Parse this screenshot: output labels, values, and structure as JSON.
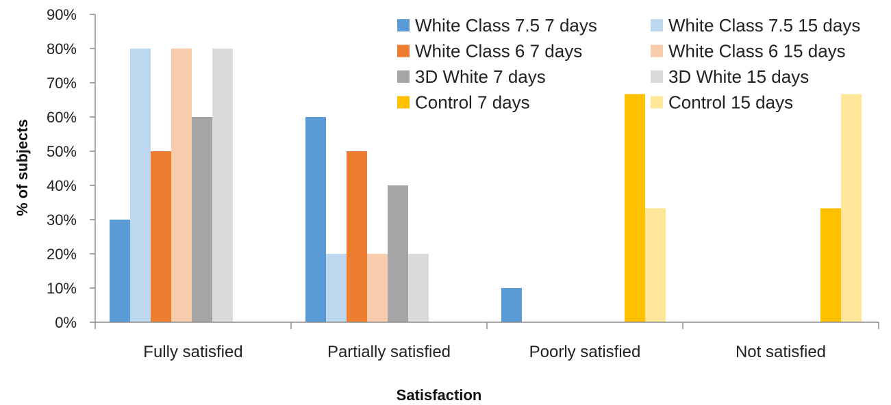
{
  "chart_data": {
    "type": "bar",
    "title": "",
    "xlabel": "Satisfaction",
    "ylabel": "% of subjects",
    "ylim": [
      0,
      90
    ],
    "yticks": [
      "0%",
      "10%",
      "20%",
      "30%",
      "40%",
      "50%",
      "60%",
      "70%",
      "80%",
      "90%"
    ],
    "grid": false,
    "legend_position": "top-right",
    "categories": [
      "Fully satisfied",
      "Partially satisfied",
      "Poorly satisfied",
      "Not satisfied"
    ],
    "series": [
      {
        "name": "White Class 7.5 7 days",
        "color": "#5B9BD5",
        "values": [
          30,
          60,
          10,
          0
        ]
      },
      {
        "name": "White Class 7.5 15 days",
        "color": "#BDD7EE",
        "values": [
          80,
          20,
          0,
          0
        ]
      },
      {
        "name": "White Class 6 7 days",
        "color": "#ED7D31",
        "values": [
          50,
          50,
          0,
          0
        ]
      },
      {
        "name": "White Class 6 15 days",
        "color": "#F8CBAD",
        "values": [
          80,
          20,
          0,
          0
        ]
      },
      {
        "name": "3D White 7 days",
        "color": "#A5A5A5",
        "values": [
          60,
          40,
          0,
          0
        ]
      },
      {
        "name": "3D White 15 days",
        "color": "#DBDBDB",
        "values": [
          80,
          20,
          0,
          0
        ]
      },
      {
        "name": "Control 7 days",
        "color": "#FFC000",
        "values": [
          0,
          0,
          66.7,
          33.3
        ]
      },
      {
        "name": "Control 15 days",
        "color": "#FFE699",
        "values": [
          0,
          0,
          33.3,
          66.7
        ]
      }
    ]
  }
}
